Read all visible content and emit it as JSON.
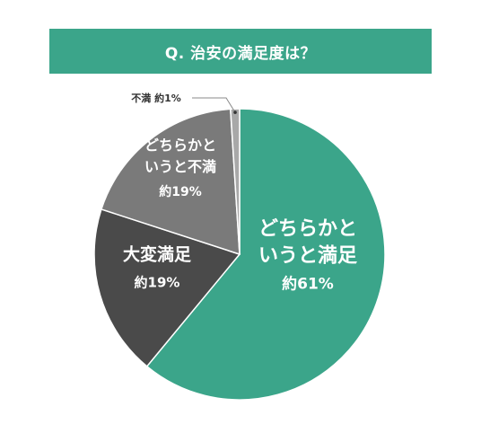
{
  "header": {
    "title": "Q. 治安の満足度は？"
  },
  "colors": {
    "title_bg": "#3ba58a",
    "slice_1": "#3ba58a",
    "slice_2": "#4a4a4a",
    "slice_3": "#7a7a7a",
    "slice_4": "#a8a8a8",
    "label_outside": "#333333",
    "label_inside": "#ffffff"
  },
  "chart_data": {
    "type": "pie",
    "title": "Q. 治安の満足度は？",
    "unit": "%",
    "slices": [
      {
        "lines": [
          "どちらかと",
          "いうと満足"
        ],
        "value_label": "約61%",
        "value": 61,
        "color": "#3ba58a"
      },
      {
        "lines": [
          "大変満足"
        ],
        "value_label": "約19%",
        "value": 19,
        "color": "#4a4a4a"
      },
      {
        "lines": [
          "どちらかと",
          "いうと不満"
        ],
        "value_label": "約19%",
        "value": 19,
        "color": "#7a7a7a"
      },
      {
        "lines": [
          "不満"
        ],
        "value_label": "約1%",
        "value": 1,
        "color": "#a8a8a8",
        "outside": true
      }
    ]
  }
}
